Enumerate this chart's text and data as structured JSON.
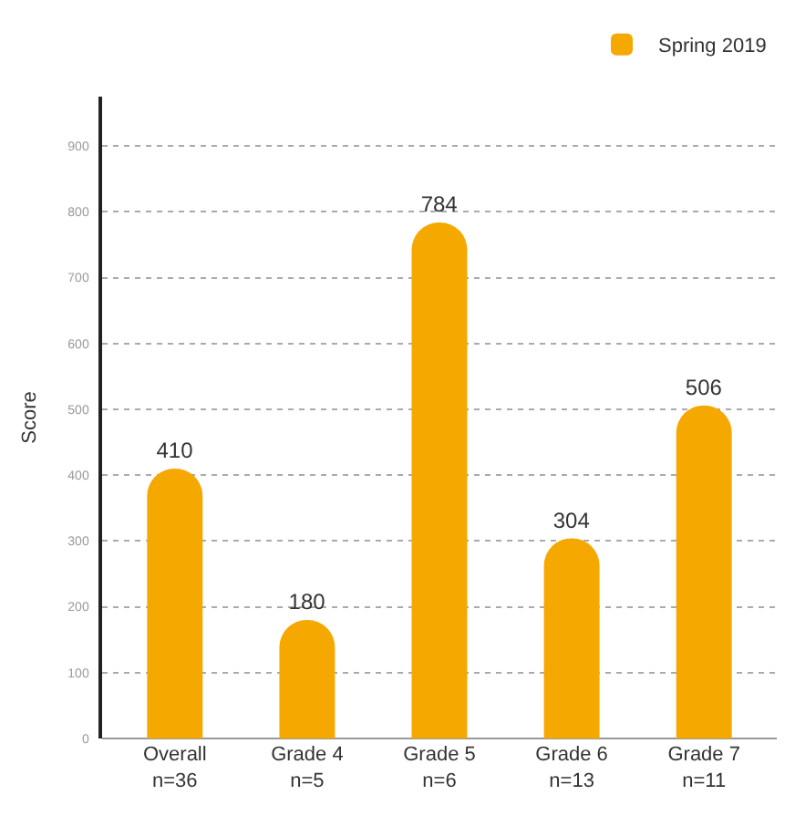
{
  "chart_data": {
    "type": "bar",
    "ylabel": "Score",
    "categories": [
      "Overall\nn=36",
      "Grade 4\nn=5",
      "Grade 5\nn=6",
      "Grade 6\nn=13",
      "Grade 7\nn=11"
    ],
    "series": [
      {
        "name": "Spring 2019",
        "color": "#f5a800",
        "values": [
          410,
          180,
          784,
          304,
          506
        ]
      }
    ],
    "ylim": [
      0,
      975
    ],
    "yticks": [
      0,
      100,
      200,
      300,
      400,
      500,
      600,
      700,
      800,
      900
    ],
    "grid": "y",
    "legend": "top right",
    "data_labels": true
  }
}
